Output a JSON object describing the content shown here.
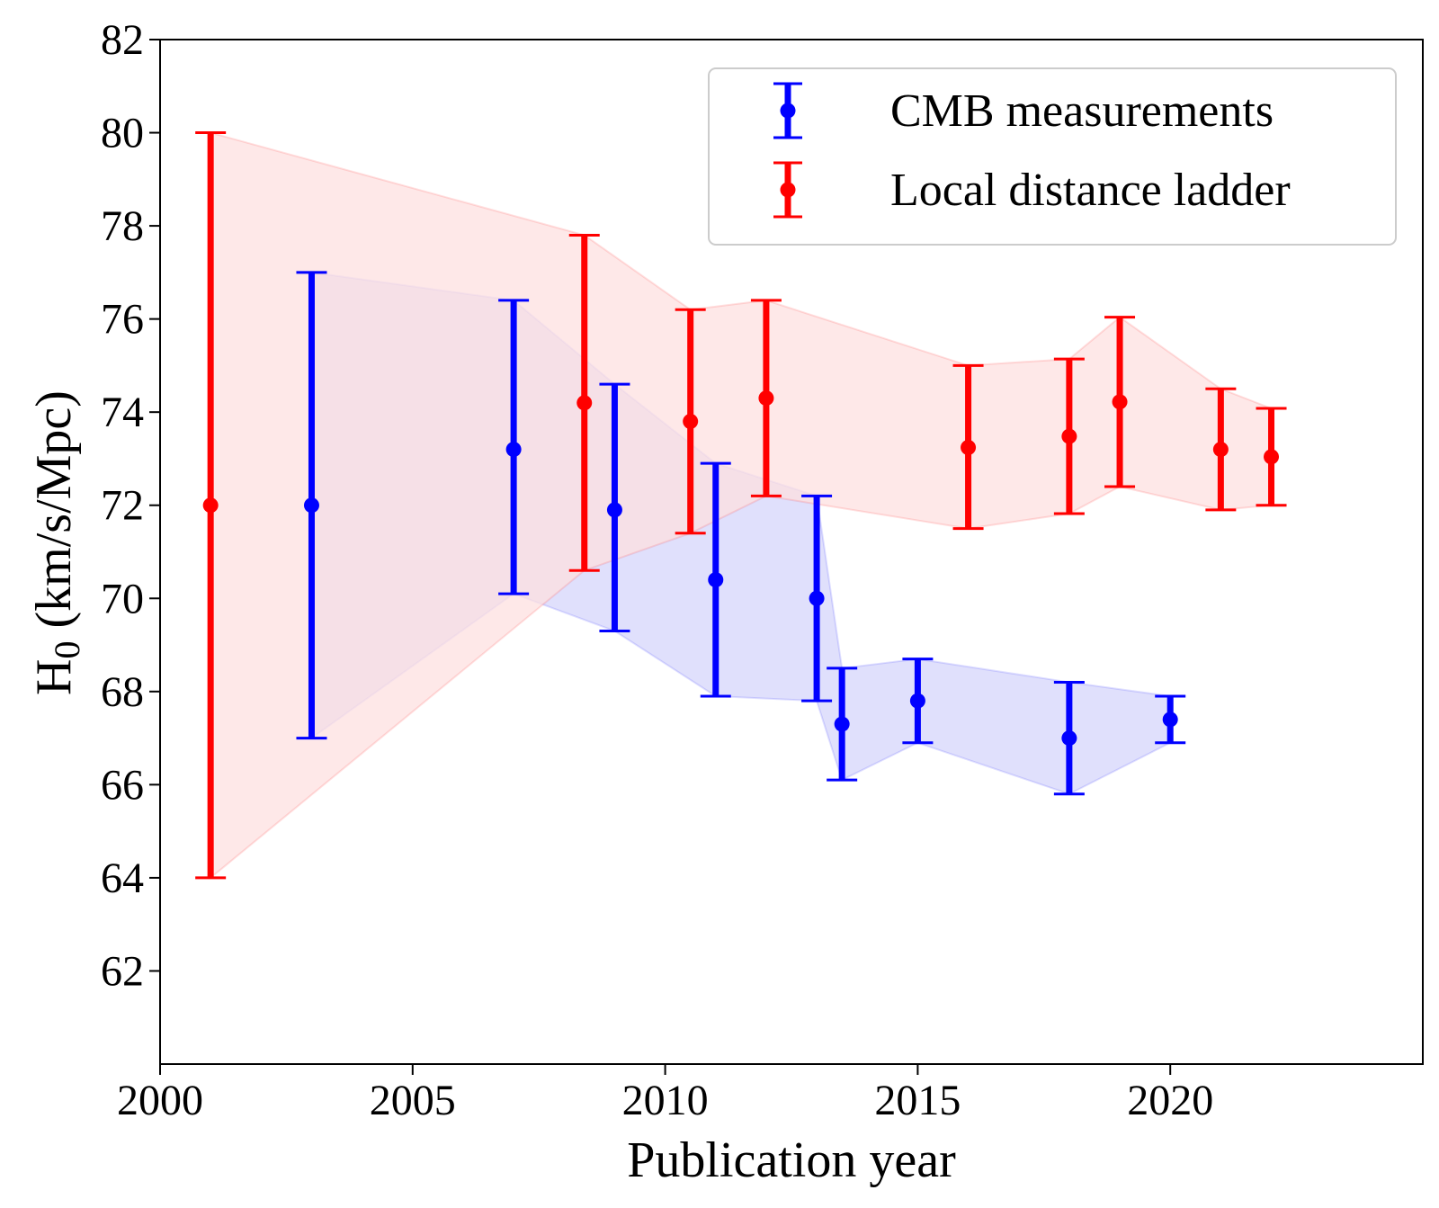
{
  "chart_data": {
    "type": "scatter",
    "xlabel": "Publication year",
    "ylabel_main": "H",
    "ylabel_sub": "0",
    "ylabel_rest": " (km/s/Mpc)",
    "xlim": [
      2000,
      2025
    ],
    "ylim": [
      60,
      82
    ],
    "xticks": [
      2000,
      2005,
      2010,
      2015,
      2020
    ],
    "yticks": [
      62,
      64,
      66,
      68,
      70,
      72,
      74,
      76,
      78,
      80,
      82
    ],
    "grid": false,
    "legend_position": "top-right",
    "series": [
      {
        "name": "CMB measurements",
        "color": "#0000ff",
        "band_color": "#d6d6fb",
        "points": [
          {
            "x": 2003,
            "y": 72.0,
            "lo": 67.0,
            "hi": 77.0
          },
          {
            "x": 2007,
            "y": 73.2,
            "lo": 70.1,
            "hi": 76.4
          },
          {
            "x": 2009,
            "y": 71.9,
            "lo": 69.3,
            "hi": 74.6
          },
          {
            "x": 2011,
            "y": 70.4,
            "lo": 67.9,
            "hi": 72.9
          },
          {
            "x": 2013,
            "y": 70.0,
            "lo": 67.8,
            "hi": 72.2
          },
          {
            "x": 2013.5,
            "y": 67.3,
            "lo": 66.1,
            "hi": 68.5
          },
          {
            "x": 2015,
            "y": 67.8,
            "lo": 66.9,
            "hi": 68.7
          },
          {
            "x": 2018,
            "y": 67.0,
            "lo": 65.8,
            "hi": 68.2
          },
          {
            "x": 2020,
            "y": 67.4,
            "lo": 66.9,
            "hi": 67.9
          }
        ]
      },
      {
        "name": "Local distance ladder",
        "color": "#ff0000",
        "band_color": "#fde0e0",
        "points": [
          {
            "x": 2001,
            "y": 72.0,
            "lo": 64.0,
            "hi": 80.0
          },
          {
            "x": 2008.4,
            "y": 74.2,
            "lo": 70.6,
            "hi": 77.8
          },
          {
            "x": 2010.5,
            "y": 73.8,
            "lo": 71.4,
            "hi": 76.2
          },
          {
            "x": 2012,
            "y": 74.3,
            "lo": 72.2,
            "hi": 76.4
          },
          {
            "x": 2016,
            "y": 73.24,
            "lo": 71.5,
            "hi": 75.0
          },
          {
            "x": 2018,
            "y": 73.48,
            "lo": 71.82,
            "hi": 75.14
          },
          {
            "x": 2019,
            "y": 74.22,
            "lo": 72.4,
            "hi": 76.04
          },
          {
            "x": 2021,
            "y": 73.2,
            "lo": 71.9,
            "hi": 74.5
          },
          {
            "x": 2022,
            "y": 73.04,
            "lo": 72.0,
            "hi": 74.08
          }
        ]
      }
    ]
  }
}
